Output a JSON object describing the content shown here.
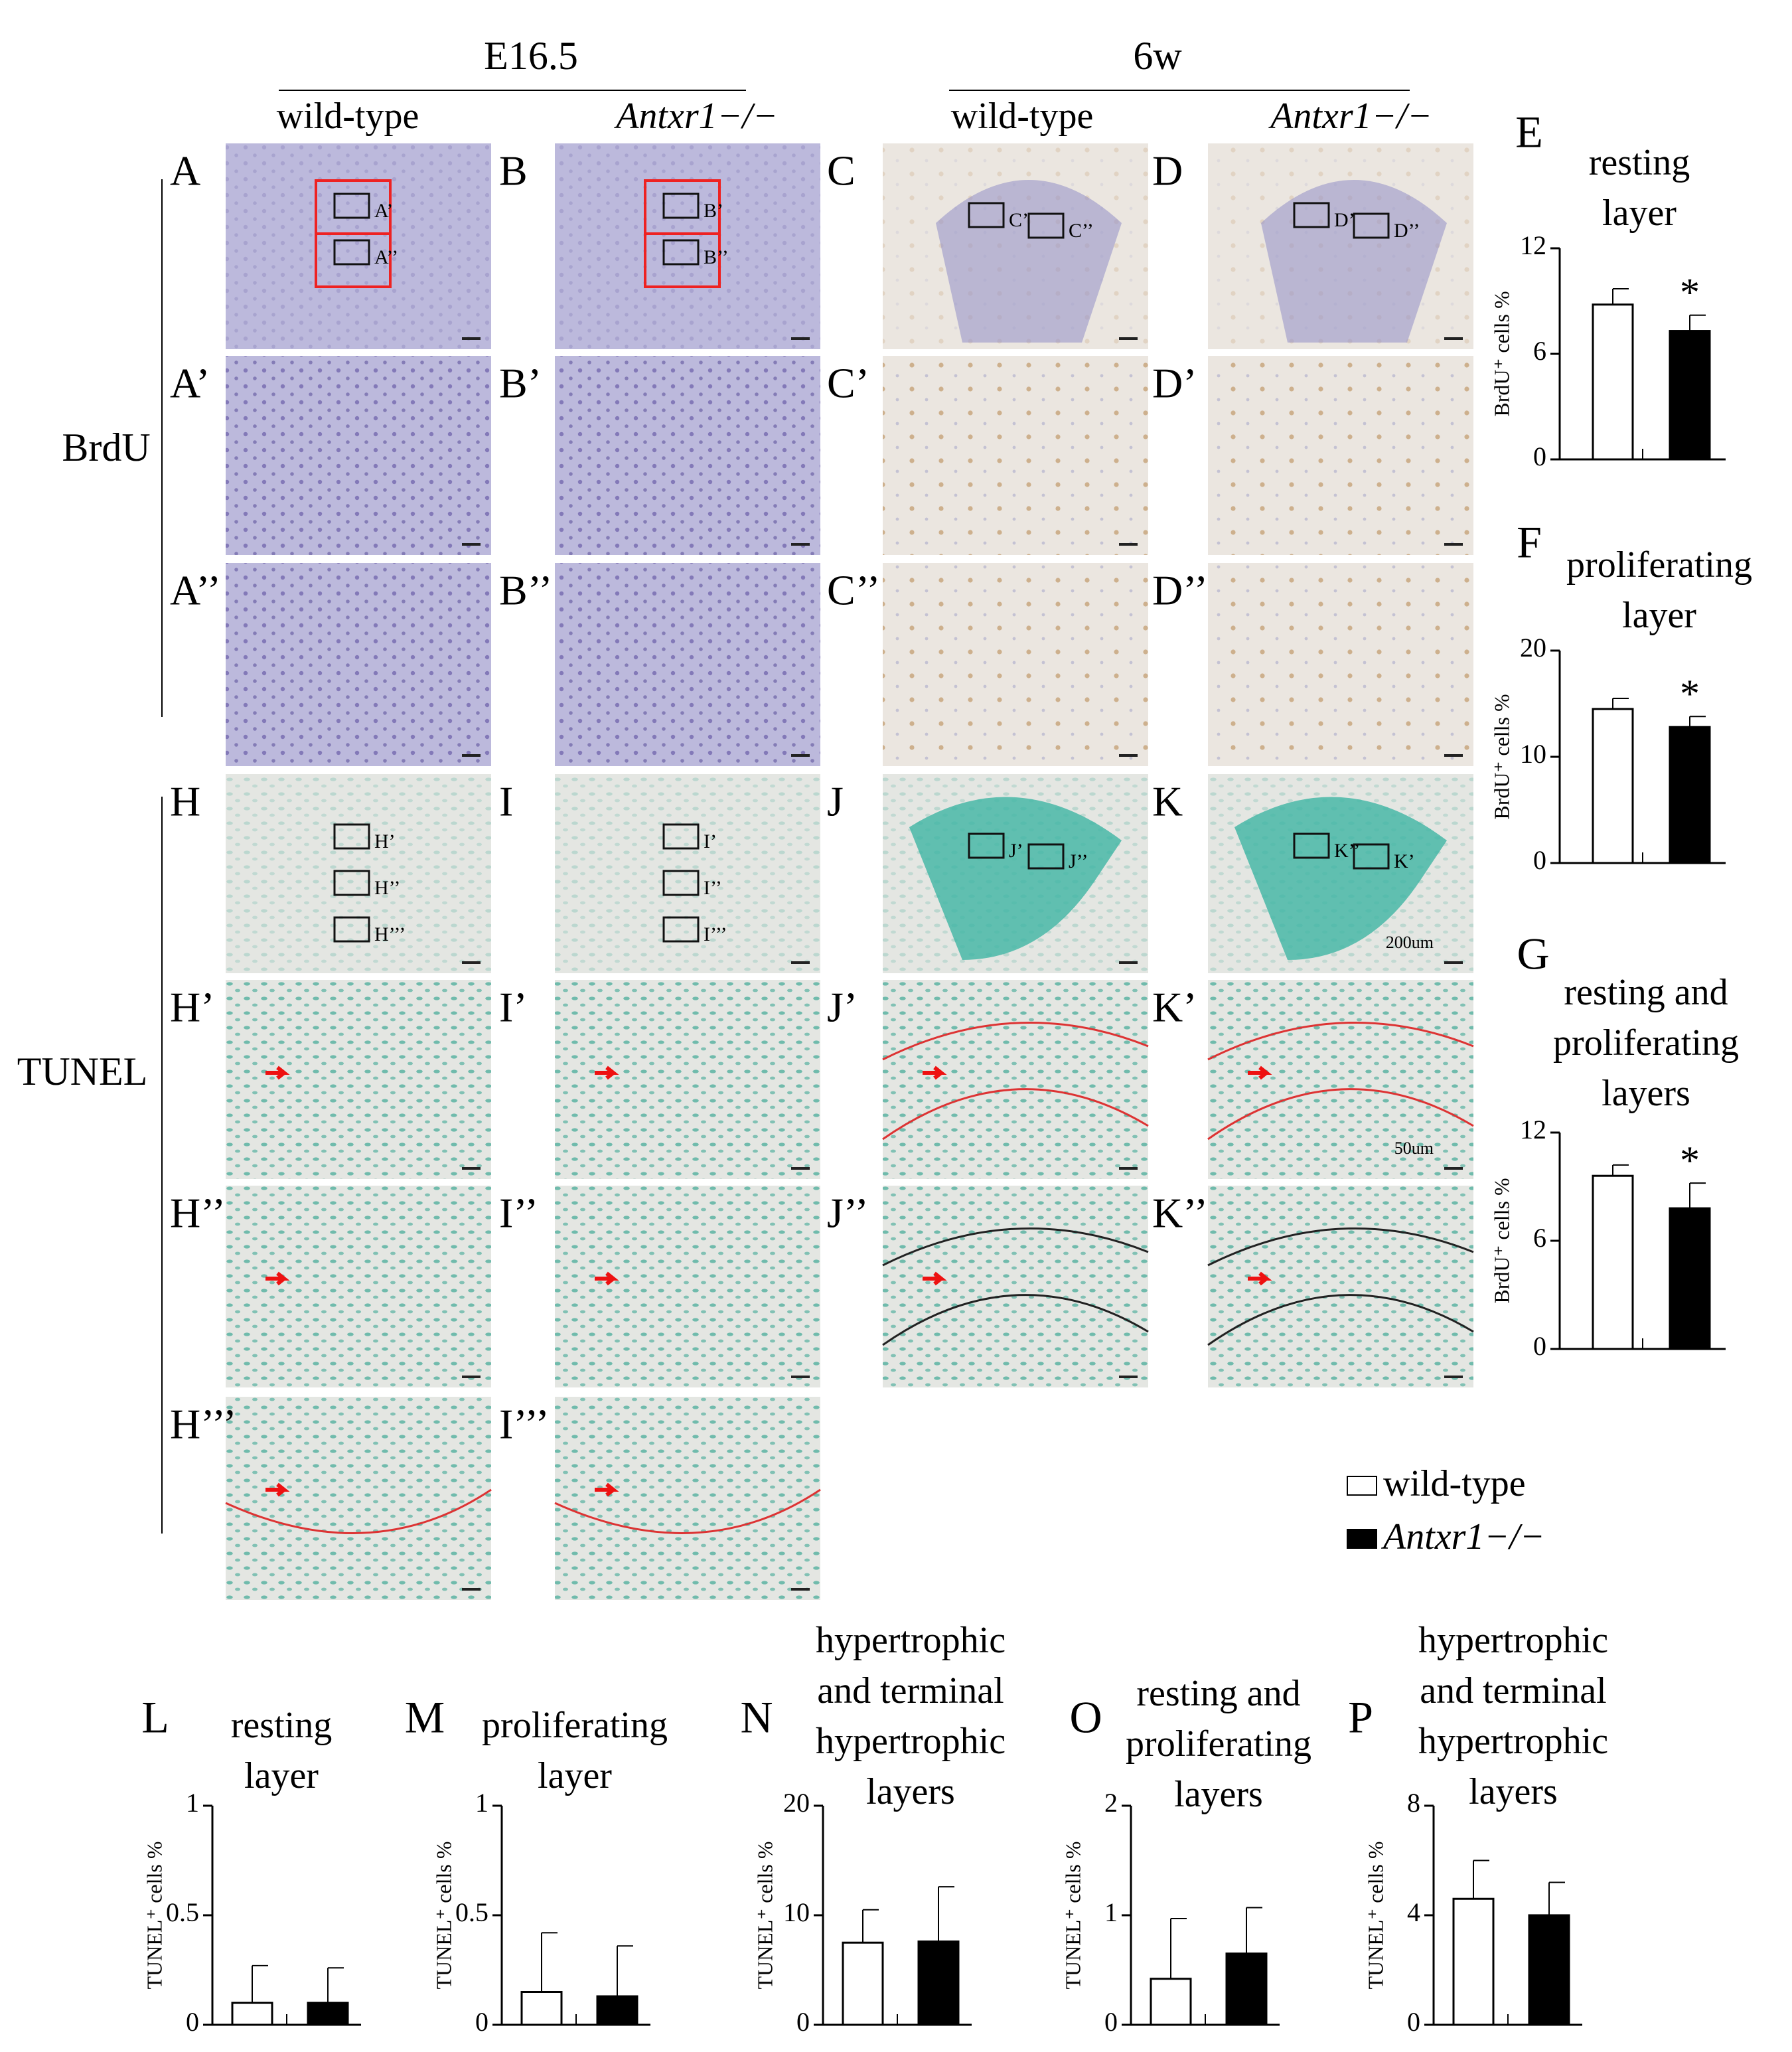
{
  "figure": {
    "headers": [
      "E16.5",
      "6w"
    ],
    "columns": [
      "wild-type",
      "Antxr1−/−",
      "wild-type",
      "Antxr1−/−"
    ],
    "rows": [
      "BrdU",
      "TUNEL"
    ],
    "panels": [
      [
        {
          "label": "A",
          "boxes": [
            "A’",
            "A’’"
          ]
        },
        {
          "label": "B",
          "boxes": [
            "B’",
            "B’’"
          ]
        },
        {
          "label": "C",
          "boxes": [
            "C’",
            "C’’"
          ]
        },
        {
          "label": "D",
          "boxes": [
            "D’",
            "D’’"
          ]
        }
      ],
      [
        {
          "label": "A’"
        },
        {
          "label": "B’"
        },
        {
          "label": "C’"
        },
        {
          "label": "D’"
        }
      ],
      [
        {
          "label": "A’’"
        },
        {
          "label": "B’’"
        },
        {
          "label": "C’’"
        },
        {
          "label": "D’’"
        }
      ],
      [
        {
          "label": "H",
          "boxes": [
            "H’",
            "H’’",
            "H’’’"
          ]
        },
        {
          "label": "I",
          "boxes": [
            "I’",
            "I’’",
            "I’’’"
          ]
        },
        {
          "label": "J",
          "boxes": [
            "J’",
            "J’’"
          ]
        },
        {
          "label": "K",
          "boxes": [
            "K’’",
            "K’"
          ],
          "scale": "200um"
        }
      ],
      [
        {
          "label": "H’"
        },
        {
          "label": "I’"
        },
        {
          "label": "J’"
        },
        {
          "label": "K’",
          "scale": "50um"
        }
      ],
      [
        {
          "label": "H’’"
        },
        {
          "label": "I’’"
        },
        {
          "label": "J’’"
        },
        {
          "label": "K’’"
        }
      ],
      [
        {
          "label": "H’’’"
        },
        {
          "label": "I’’’"
        }
      ]
    ],
    "legend": [
      {
        "name": "wild-type",
        "color": "#ffffff"
      },
      {
        "name": "Antxr1−/−",
        "color": "#000000"
      }
    ]
  },
  "chart_data": [
    {
      "type": "bar",
      "label": "E",
      "title": [
        "resting",
        "layer"
      ],
      "ylabel": "BrdU⁺ cells %",
      "ylim": [
        0,
        12
      ],
      "yticks": [
        0,
        6,
        12
      ],
      "values": [
        8.8,
        7.3
      ],
      "errors": [
        0.9,
        0.9
      ],
      "annotation": "*"
    },
    {
      "type": "bar",
      "label": "F",
      "title": [
        "proliferating",
        "layer"
      ],
      "ylabel": "BrdU⁺ cells %",
      "ylim": [
        0,
        20
      ],
      "yticks": [
        0,
        10,
        20
      ],
      "values": [
        14.5,
        12.8
      ],
      "errors": [
        1.0,
        1.0
      ],
      "annotation": "*"
    },
    {
      "type": "bar",
      "label": "G",
      "title": [
        "resting and",
        "proliferating",
        "layers"
      ],
      "ylabel": "BrdU⁺ cells %",
      "ylim": [
        0,
        12
      ],
      "yticks": [
        0,
        6,
        12
      ],
      "values": [
        9.6,
        7.8
      ],
      "errors": [
        0.6,
        1.4
      ],
      "annotation": "*"
    },
    {
      "type": "bar",
      "label": "L",
      "title": [
        "resting",
        "layer"
      ],
      "ylabel": "TUNEL⁺ cells %",
      "ylim": [
        0,
        1
      ],
      "yticks": [
        0,
        0.5,
        1
      ],
      "values": [
        0.1,
        0.1
      ],
      "errors": [
        0.17,
        0.16
      ]
    },
    {
      "type": "bar",
      "label": "M",
      "title": [
        "proliferating",
        "layer"
      ],
      "ylabel": "TUNEL⁺ cells %",
      "ylim": [
        0,
        1
      ],
      "yticks": [
        0,
        0.5,
        1
      ],
      "values": [
        0.15,
        0.13
      ],
      "errors": [
        0.27,
        0.23
      ]
    },
    {
      "type": "bar",
      "label": "N",
      "title": [
        "hypertrophic",
        "and terminal",
        "hypertrophic",
        "layers"
      ],
      "ylabel": "TUNEL⁺ cells %",
      "ylim": [
        0,
        20
      ],
      "yticks": [
        0,
        10,
        20
      ],
      "values": [
        7.5,
        7.6
      ],
      "errors": [
        3.0,
        5.0
      ]
    },
    {
      "type": "bar",
      "label": "O",
      "title": [
        "resting and",
        "proliferating",
        "layers"
      ],
      "ylabel": "TUNEL⁺ cells %",
      "ylim": [
        0,
        2
      ],
      "yticks": [
        0,
        1,
        2
      ],
      "values": [
        0.42,
        0.65
      ],
      "errors": [
        0.55,
        0.42
      ]
    },
    {
      "type": "bar",
      "label": "P",
      "title": [
        "hypertrophic",
        "and terminal",
        "hypertrophic",
        "layers"
      ],
      "ylabel": "TUNEL⁺ cells %",
      "ylim": [
        0,
        8
      ],
      "yticks": [
        0,
        4,
        8
      ],
      "values": [
        4.6,
        4.0
      ],
      "errors": [
        1.4,
        1.2
      ]
    }
  ]
}
